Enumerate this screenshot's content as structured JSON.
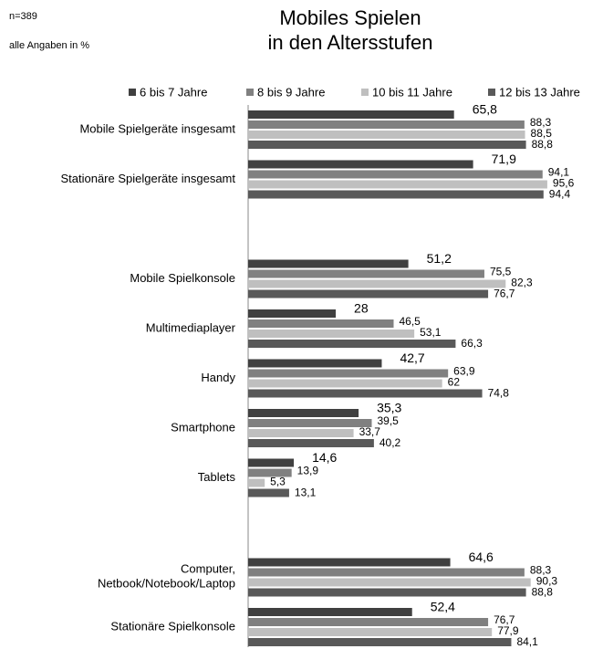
{
  "chart_data": {
    "type": "barh",
    "notes": [
      "n=389",
      "alle Angaben in %"
    ],
    "title": [
      "Mobiles Spielen",
      "in den Altersstufen"
    ],
    "categories": [
      "Mobile Spielgeräte insgesamt",
      "Stationäre Spielgeräte insgesamt",
      "Mobile Spielkonsole",
      "Multimediaplayer",
      "Handy",
      "Smartphone",
      "Tablets",
      "Computer,\nNetbook/Notebook/Laptop",
      "Stationäre Spielkonsole"
    ],
    "xlim": [
      0,
      100
    ],
    "series": [
      {
        "name": "6 bis 7 Jahre",
        "color": "#404040",
        "values": [
          65.8,
          71.9,
          51.2,
          28,
          42.7,
          35.3,
          14.6,
          64.6,
          52.4
        ],
        "value_labels": [
          "65,8",
          "71,9",
          "51,2",
          "28",
          "42,7",
          "35,3",
          "14,6",
          "64,6",
          "52,4"
        ]
      },
      {
        "name": "8 bis 9 Jahre",
        "color": "#808080",
        "values": [
          88.3,
          94.1,
          75.5,
          46.5,
          63.9,
          39.5,
          13.9,
          88.3,
          76.7
        ],
        "value_labels": [
          "88,3",
          "94,1",
          "75,5",
          "46,5",
          "63,9",
          "39,5",
          "13,9",
          "88,3",
          "76,7"
        ]
      },
      {
        "name": "10 bis 11 Jahre",
        "color": "#bfbfbf",
        "values": [
          88.5,
          95.6,
          82.3,
          53.1,
          62,
          33.7,
          5.3,
          90.3,
          77.9
        ],
        "value_labels": [
          "88,5",
          "95,6",
          "82,3",
          "53,1",
          "62",
          "33,7",
          "5,3",
          "90,3",
          "77,9"
        ]
      },
      {
        "name": "12 bis 13 Jahre",
        "color": "#595959",
        "values": [
          88.8,
          94.4,
          76.7,
          66.3,
          74.8,
          40.2,
          13.1,
          88.8,
          84.1
        ],
        "value_labels": [
          "88,8",
          "94,4",
          "76,7",
          "66,3",
          "74,8",
          "40,2",
          "13,1",
          "88,8",
          "84,1"
        ]
      }
    ]
  }
}
